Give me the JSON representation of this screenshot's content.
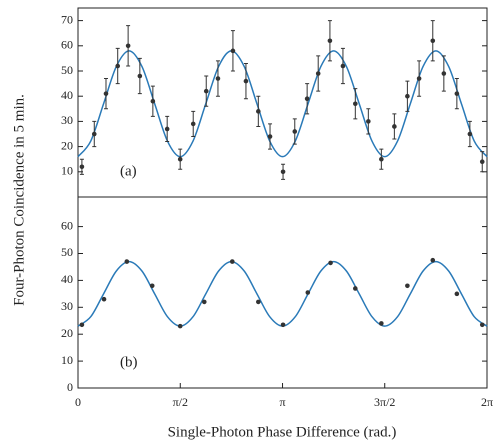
{
  "chart_data": [
    {
      "type": "scatter-fit",
      "annotation": "(a)",
      "ylabel": "Four-Photon Coincidence in 5 min.",
      "xlim": [
        0,
        6.283
      ],
      "ylim": [
        0,
        75
      ],
      "yticks": [
        10,
        20,
        30,
        40,
        50,
        60,
        70
      ],
      "points": {
        "color": "#333333",
        "x": [
          0.06,
          0.25,
          0.43,
          0.61,
          0.77,
          0.95,
          1.15,
          1.37,
          1.57,
          1.77,
          1.97,
          2.15,
          2.38,
          2.58,
          2.77,
          2.95,
          3.15,
          3.33,
          3.52,
          3.69,
          3.87,
          4.07,
          4.26,
          4.46,
          4.66,
          4.86,
          5.06,
          5.24,
          5.45,
          5.62,
          5.82,
          6.02,
          6.21
        ],
        "values": [
          12,
          25,
          41,
          52,
          60,
          48,
          38,
          27,
          15,
          29,
          42,
          47,
          58,
          46,
          34,
          24,
          10,
          26,
          39,
          49,
          62,
          52,
          37,
          30,
          15,
          28,
          40,
          47,
          62,
          49,
          41,
          25,
          14
        ],
        "errors": [
          3,
          5,
          6,
          7,
          8,
          7,
          6,
          5,
          4,
          5,
          6,
          7,
          8,
          7,
          6,
          5,
          3,
          5,
          6,
          7,
          8,
          7,
          6,
          5,
          4,
          5,
          6,
          7,
          8,
          7,
          6,
          5,
          4
        ]
      },
      "fit": {
        "color": "#2a7ab8",
        "x": [
          0,
          0.196,
          0.393,
          0.589,
          0.785,
          0.982,
          1.178,
          1.374,
          1.571,
          1.767,
          1.963,
          2.16,
          2.356,
          2.553,
          2.749,
          2.945,
          3.142,
          3.338,
          3.534,
          3.731,
          3.927,
          4.123,
          4.32,
          4.516,
          4.712,
          4.909,
          5.105,
          5.301,
          5.498,
          5.694,
          5.89,
          6.087,
          6.283
        ],
        "values": [
          16,
          22.2,
          37,
          51.8,
          58,
          51.8,
          37,
          22.2,
          16,
          22.2,
          37,
          51.8,
          58,
          51.8,
          37,
          22.2,
          16,
          22.2,
          37,
          51.8,
          58,
          51.8,
          37,
          22.2,
          16,
          22.2,
          37,
          51.8,
          58,
          51.8,
          37,
          22.2,
          16
        ]
      }
    },
    {
      "type": "scatter-fit",
      "annotation": "(b)",
      "xlabel": "Single-Photon Phase Difference (rad.)",
      "xlim": [
        0,
        6.283
      ],
      "ylim": [
        0,
        71
      ],
      "yticks": [
        0,
        10,
        20,
        30,
        40,
        50,
        60
      ],
      "xticks": [
        0,
        {
          "value": 1.571,
          "label": "π/2"
        },
        {
          "value": 3.142,
          "label": "π"
        },
        {
          "value": 4.712,
          "label": "3π/2"
        },
        {
          "value": 6.283,
          "label": "2π"
        }
      ],
      "points": {
        "color": "#333333",
        "x": [
          0.06,
          0.4,
          0.75,
          1.14,
          1.57,
          1.94,
          2.37,
          2.77,
          3.15,
          3.53,
          3.88,
          4.26,
          4.66,
          5.06,
          5.45,
          5.82,
          6.21
        ],
        "values": [
          23.5,
          33,
          47,
          38,
          23,
          32,
          47,
          32,
          23.5,
          35.5,
          46.5,
          37,
          24,
          38,
          47.5,
          35,
          23.5
        ]
      },
      "fit": {
        "color": "#2a7ab8",
        "x": [
          0,
          0.196,
          0.393,
          0.589,
          0.785,
          0.982,
          1.178,
          1.374,
          1.571,
          1.767,
          1.963,
          2.16,
          2.356,
          2.553,
          2.749,
          2.945,
          3.142,
          3.338,
          3.534,
          3.731,
          3.927,
          4.123,
          4.32,
          4.516,
          4.712,
          4.909,
          5.105,
          5.301,
          5.498,
          5.694,
          5.89,
          6.087,
          6.283
        ],
        "values": [
          23,
          26.5,
          35,
          43.5,
          47,
          43.5,
          35,
          26.5,
          23,
          26.5,
          35,
          43.5,
          47,
          43.5,
          35,
          26.5,
          23,
          26.5,
          35,
          43.5,
          47,
          43.5,
          35,
          26.5,
          23,
          26.5,
          35,
          43.5,
          47,
          43.5,
          35,
          26.5,
          23
        ]
      }
    }
  ]
}
